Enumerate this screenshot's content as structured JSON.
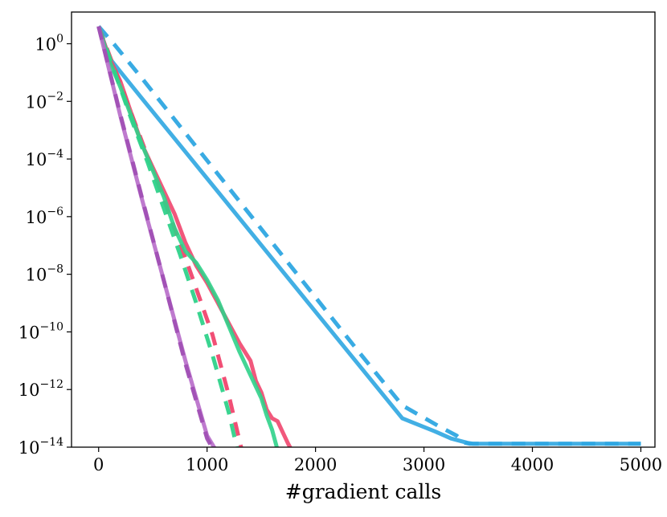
{
  "chart_data": {
    "type": "line",
    "title": "",
    "xlabel": "#gradient calls",
    "ylabel": "",
    "xlim": [
      -250,
      5130
    ],
    "ylim_log10": [
      -14,
      1.1
    ],
    "yscale": "log",
    "grid": false,
    "legend": "none",
    "x_ticks": [
      0,
      1000,
      2000,
      3000,
      4000,
      5000
    ],
    "x_tick_labels": [
      "0",
      "1000",
      "2000",
      "3000",
      "4000",
      "5000"
    ],
    "y_ticks_log10": [
      0,
      -2,
      -4,
      -6,
      -8,
      -10,
      -12,
      -14
    ],
    "y_tick_labels": [
      {
        "base": "10",
        "exp": "0"
      },
      {
        "base": "10",
        "exp": "−2"
      },
      {
        "base": "10",
        "exp": "−4"
      },
      {
        "base": "10",
        "exp": "−6"
      },
      {
        "base": "10",
        "exp": "−8"
      },
      {
        "base": "10",
        "exp": "−10"
      },
      {
        "base": "10",
        "exp": "−12"
      },
      {
        "base": "10",
        "exp": "−14"
      }
    ],
    "series": [
      {
        "color": "#2ea6e1",
        "style": "solid",
        "x": [
          0,
          100,
          400,
          800,
          1200,
          1600,
          2000,
          2400,
          2800,
          3100,
          3250,
          3350,
          3400,
          3450,
          3500,
          4000,
          4500,
          5000
        ],
        "log10_y": [
          0.6,
          -0.5,
          -1.9,
          -3.75,
          -5.6,
          -7.45,
          -9.3,
          -11.15,
          -13.0,
          -13.45,
          -13.7,
          -13.8,
          -13.85,
          -13.88,
          -13.88,
          -13.88,
          -13.88,
          -13.88
        ]
      },
      {
        "color": "#2ea6e1",
        "style": "dashed",
        "x": [
          0,
          150,
          400,
          800,
          1200,
          1600,
          2000,
          2400,
          2800,
          3150,
          3300,
          3380,
          3420,
          3500,
          4000,
          4500,
          5000
        ],
        "log10_y": [
          0.6,
          -0.05,
          -1.2,
          -3.1,
          -5.0,
          -6.9,
          -8.8,
          -10.7,
          -12.55,
          -13.3,
          -13.6,
          -13.85,
          -13.88,
          -13.88,
          -13.88,
          -13.88,
          -13.88
        ]
      },
      {
        "color": "#f0466e",
        "style": "solid",
        "x": [
          0,
          100,
          200,
          300,
          400,
          500,
          600,
          700,
          800,
          900,
          1000,
          1100,
          1200,
          1300,
          1400,
          1450,
          1500,
          1550,
          1600,
          1650,
          1700,
          1750,
          1780
        ],
        "log10_y": [
          0.6,
          -0.5,
          -1.3,
          -2.4,
          -3.5,
          -4.3,
          -5.1,
          -5.9,
          -6.9,
          -7.7,
          -8.3,
          -9.0,
          -9.7,
          -10.4,
          -11.0,
          -11.7,
          -12.1,
          -12.7,
          -13.0,
          -13.1,
          -13.5,
          -13.9,
          -14.1
        ]
      },
      {
        "color": "#f0466e",
        "style": "dashed",
        "x": [
          0,
          150,
          300,
          450,
          600,
          750,
          900,
          1050,
          1200,
          1300,
          1320
        ],
        "log10_y": [
          0.6,
          -0.9,
          -2.4,
          -3.9,
          -5.4,
          -6.9,
          -8.5,
          -10.1,
          -12.2,
          -13.8,
          -14.1
        ]
      },
      {
        "color": "#2fd28a",
        "style": "solid",
        "x": [
          0,
          100,
          200,
          300,
          400,
          500,
          600,
          700,
          800,
          900,
          1000,
          1100,
          1200,
          1300,
          1400,
          1500,
          1550,
          1600,
          1650
        ],
        "log10_y": [
          0.6,
          -0.6,
          -1.5,
          -2.5,
          -3.5,
          -4.4,
          -5.3,
          -6.4,
          -7.2,
          -7.6,
          -8.2,
          -8.9,
          -9.8,
          -10.7,
          -11.5,
          -12.3,
          -12.9,
          -13.4,
          -14.1
        ]
      },
      {
        "color": "#2fd28a",
        "style": "dashed",
        "x": [
          0,
          150,
          300,
          450,
          600,
          750,
          900,
          1050,
          1200,
          1280
        ],
        "log10_y": [
          0.6,
          -1.0,
          -2.6,
          -4.1,
          -5.7,
          -7.3,
          -9.0,
          -10.8,
          -12.8,
          -14.1
        ]
      },
      {
        "color": "#b76cc9",
        "style": "solid",
        "x": [
          0,
          200,
          400,
          600,
          800,
          1000,
          1080
        ],
        "log10_y": [
          0.6,
          -2.5,
          -5.4,
          -8.2,
          -11.0,
          -13.6,
          -14.1
        ]
      },
      {
        "color": "#a050b4",
        "style": "dashed",
        "x": [
          0,
          200,
          400,
          600,
          800,
          1000,
          1060
        ],
        "log10_y": [
          0.6,
          -2.45,
          -5.35,
          -8.2,
          -11.1,
          -13.7,
          -14.1
        ]
      }
    ]
  }
}
